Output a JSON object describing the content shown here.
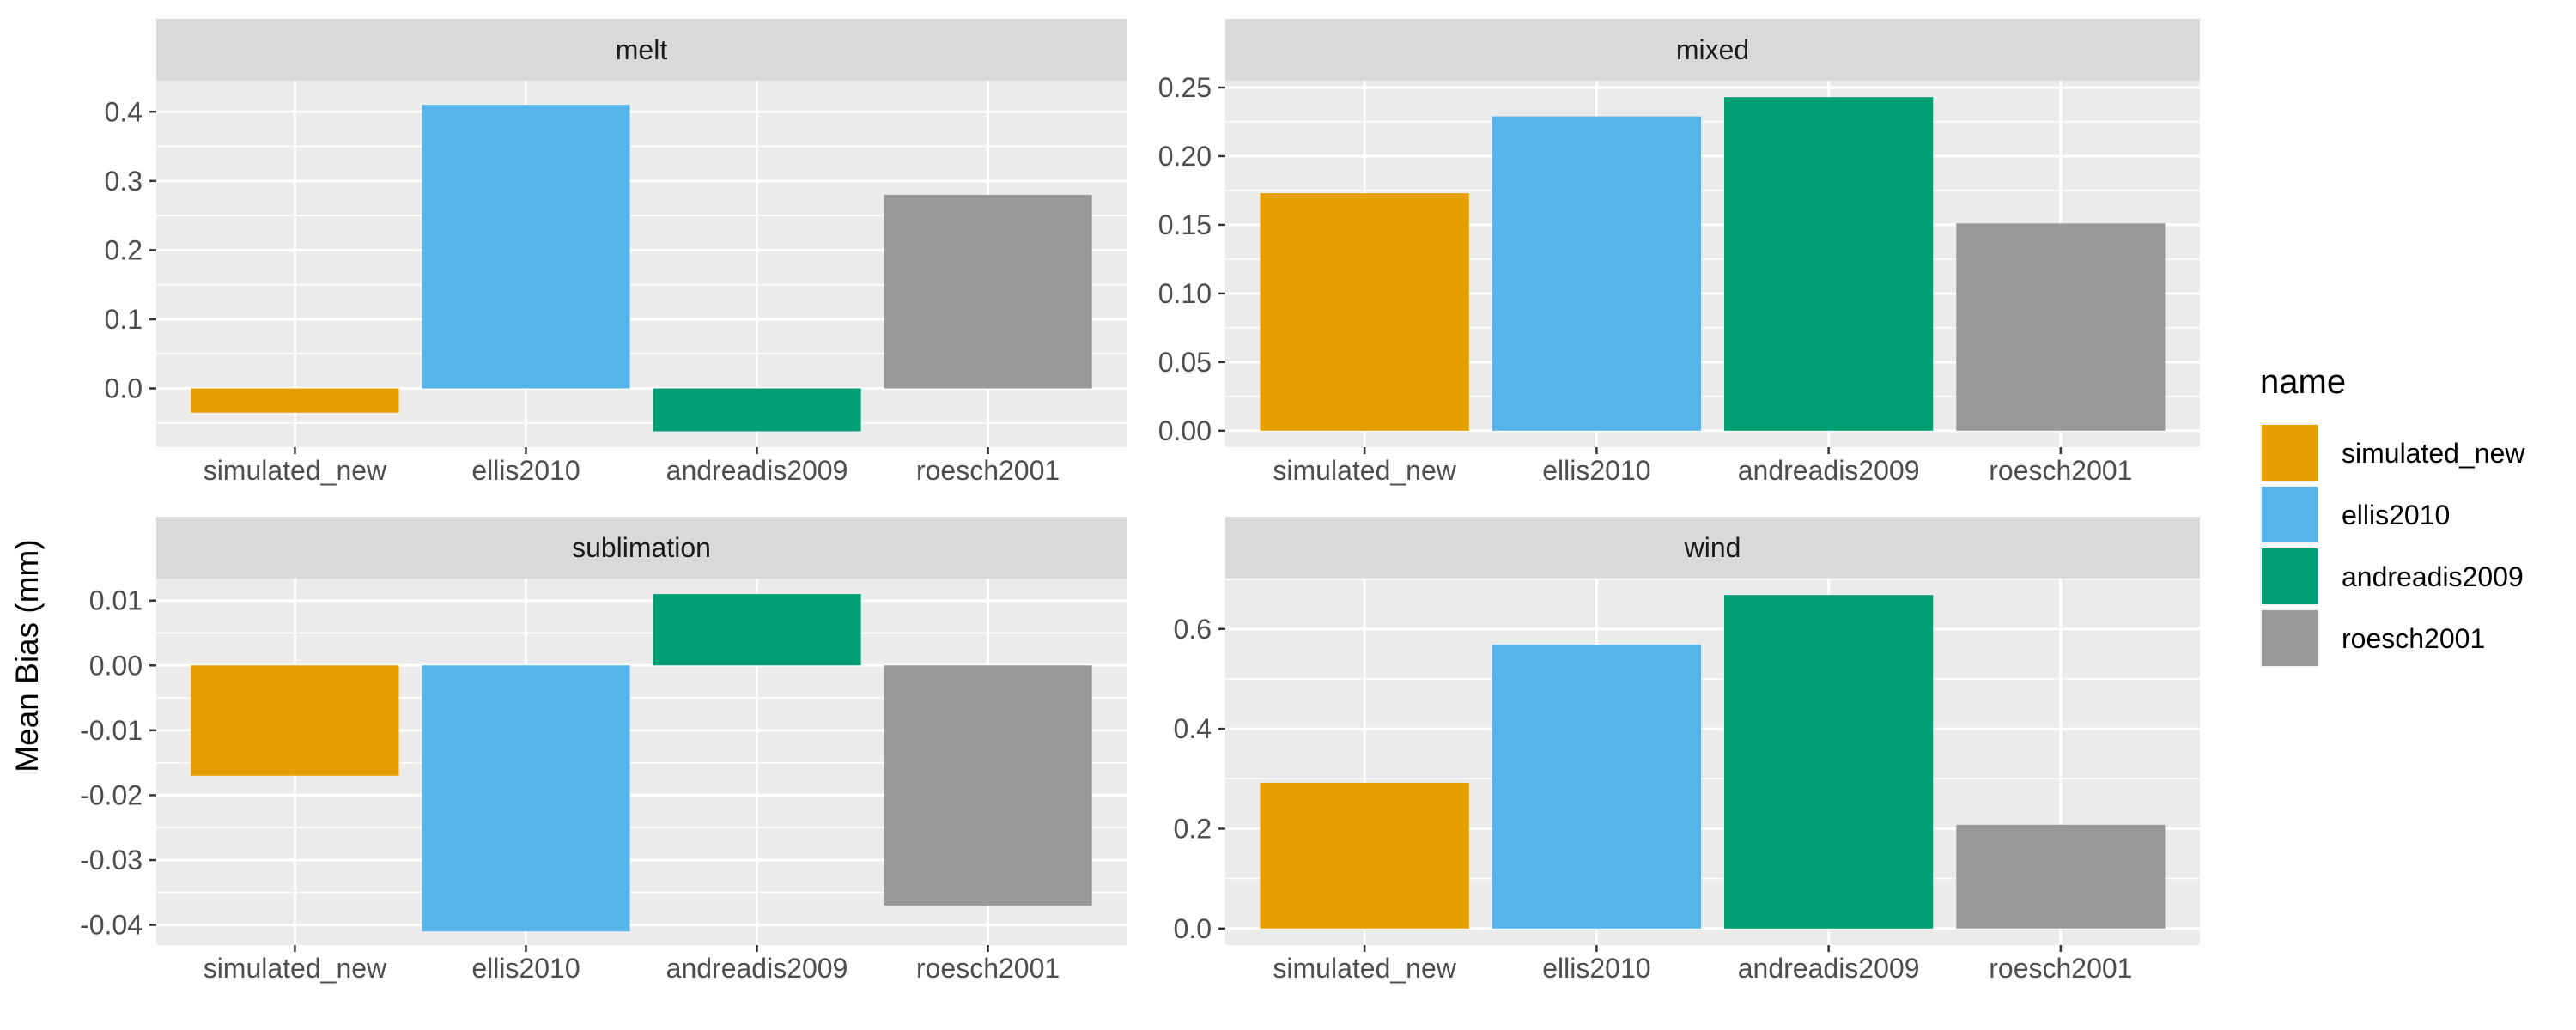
{
  "ylabel": "Mean Bias (mm)",
  "legend": {
    "title": "name",
    "position": "right",
    "items": [
      {
        "name": "simulated_new",
        "color": "#E69F00"
      },
      {
        "name": "ellis2010",
        "color": "#56B4E9"
      },
      {
        "name": "andreadis2009",
        "color": "#009E73"
      },
      {
        "name": "roesch2001",
        "color": "#999999"
      }
    ]
  },
  "chart_data": [
    {
      "type": "bar",
      "title": "melt",
      "categories": [
        "simulated_new",
        "ellis2010",
        "andreadis2009",
        "roesch2001"
      ],
      "values": [
        -0.035,
        0.41,
        -0.062,
        0.28
      ],
      "ylim": [
        -0.085,
        0.445
      ],
      "yticks": [
        0.0,
        0.1,
        0.2,
        0.3,
        0.4
      ],
      "ytick_labels": [
        "0.0",
        "0.1",
        "0.2",
        "0.3",
        "0.4"
      ],
      "grid": true
    },
    {
      "type": "bar",
      "title": "mixed",
      "categories": [
        "simulated_new",
        "ellis2010",
        "andreadis2009",
        "roesch2001"
      ],
      "values": [
        0.173,
        0.229,
        0.243,
        0.151
      ],
      "ylim": [
        -0.012,
        0.255
      ],
      "yticks": [
        0.0,
        0.05,
        0.1,
        0.15,
        0.2,
        0.25
      ],
      "ytick_labels": [
        "0.00",
        "0.05",
        "0.10",
        "0.15",
        "0.20",
        "0.25"
      ],
      "grid": true
    },
    {
      "type": "bar",
      "title": "sublimation",
      "categories": [
        "simulated_new",
        "ellis2010",
        "andreadis2009",
        "roesch2001"
      ],
      "values": [
        -0.017,
        -0.041,
        0.011,
        -0.037
      ],
      "ylim": [
        -0.0431,
        0.0134
      ],
      "yticks": [
        -0.04,
        -0.03,
        -0.02,
        -0.01,
        0.0,
        0.01
      ],
      "ytick_labels": [
        "-0.04",
        "-0.03",
        "-0.02",
        "-0.01",
        "0.00",
        "0.01"
      ],
      "grid": true
    },
    {
      "type": "bar",
      "title": "wind",
      "categories": [
        "simulated_new",
        "ellis2010",
        "andreadis2009",
        "roesch2001"
      ],
      "values": [
        0.292,
        0.568,
        0.668,
        0.208
      ],
      "ylim": [
        -0.033,
        0.701
      ],
      "yticks": [
        0.0,
        0.2,
        0.4,
        0.6
      ],
      "ytick_labels": [
        "0.0",
        "0.2",
        "0.4",
        "0.6"
      ],
      "grid": true
    }
  ]
}
